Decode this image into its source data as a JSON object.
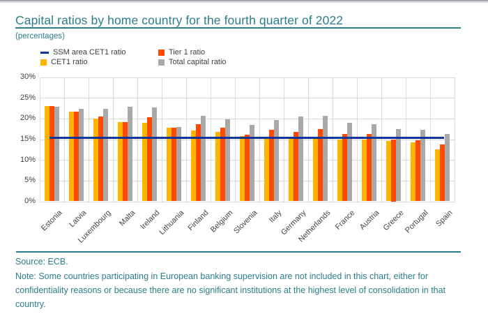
{
  "page": {
    "title": "Capital ratios by home country for the fourth quarter of 2022",
    "subtitle": "(percentages)",
    "source_line": "Source: ECB.",
    "note_line": "Note: Some countries participating in European banking supervision are not included in this chart, either for confidentiality reasons or because there are no significant institutions at the highest level of consolidation in that country."
  },
  "colors": {
    "teal": "#2b7d8c",
    "blue": "#0d359c",
    "yellow": "#ffb400",
    "orange": "#ff4b00",
    "gray": "#a9a9a9",
    "gridline": "#d9d9d9",
    "axis_text": "#3f3f3f"
  },
  "chart_data": {
    "type": "bar",
    "title": "Capital ratios by home country for the fourth quarter of 2022",
    "subtitle": "(percentages)",
    "xlabel": "",
    "ylabel": "",
    "ylim": [
      0,
      30
    ],
    "ytick_step": 5,
    "ytick_labels": [
      "0%",
      "5%",
      "10%",
      "15%",
      "20%",
      "25%",
      "30%"
    ],
    "grid": true,
    "legend_position": "top-left",
    "categories": [
      "Estonia",
      "Latvia",
      "Luxembourg",
      "Malta",
      "Ireland",
      "Lithuania",
      "Finland",
      "Belgium",
      "Slovenia",
      "Italy",
      "Germany",
      "Netherlands",
      "France",
      "Austria",
      "Greece",
      "Portugal",
      "Spain"
    ],
    "series": [
      {
        "name": "CET1 ratio",
        "color_key": "yellow",
        "values": [
          23.0,
          21.6,
          19.9,
          19.2,
          19.0,
          17.8,
          17.1,
          16.7,
          15.8,
          15.4,
          15.3,
          15.3,
          14.9,
          14.9,
          14.5,
          14.2,
          12.5
        ]
      },
      {
        "name": "Tier 1 ratio",
        "color_key": "orange",
        "values": [
          23.0,
          21.6,
          20.5,
          19.2,
          20.3,
          17.8,
          18.6,
          17.8,
          16.1,
          17.2,
          16.8,
          17.5,
          16.3,
          16.2,
          15.0,
          14.8,
          13.8
        ]
      },
      {
        "name": "Total capital ratio",
        "color_key": "gray",
        "values": [
          22.9,
          22.4,
          22.4,
          22.8,
          22.6,
          18.0,
          20.7,
          19.8,
          18.4,
          19.7,
          20.4,
          20.7,
          19.0,
          18.6,
          17.5,
          17.2,
          16.2
        ]
      }
    ],
    "reference_line": {
      "name": "SSM area CET1 ratio",
      "value": 15.3,
      "color_key": "blue"
    }
  }
}
